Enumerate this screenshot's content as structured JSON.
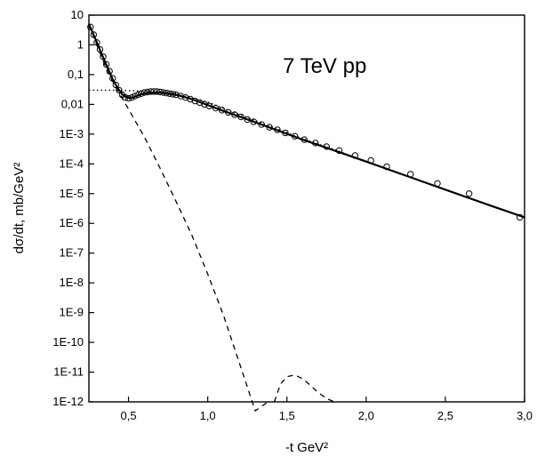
{
  "chart_data": {
    "type": "scatter",
    "title": "7 TeV  pp",
    "xlabel": "-t GeV²",
    "ylabel": "dσ/dt, mb/GeV²",
    "xlim": [
      0.25,
      3.0
    ],
    "ylim_log10": [
      -12,
      1
    ],
    "y_scale": "log",
    "grid": false,
    "x_ticks": [
      0.5,
      1.0,
      1.5,
      2.0,
      2.5,
      3.0
    ],
    "x_tick_labels": [
      "0,5",
      "1,0",
      "1,5",
      "2,0",
      "2,5",
      "3,0"
    ],
    "y_ticks_log10": [
      1,
      0,
      -1,
      -2,
      -3,
      -4,
      -5,
      -6,
      -7,
      -8,
      -9,
      -10,
      -11,
      -12
    ],
    "y_tick_labels": [
      "10",
      "1",
      "0,1",
      "0,01",
      "1E-3",
      "1E-4",
      "1E-5",
      "1E-6",
      "1E-7",
      "1E-8",
      "1E-9",
      "1E-10",
      "1E-11",
      "1E-12"
    ],
    "series": [
      {
        "style": "open-circles",
        "points": [
          [
            0.26,
            4.0
          ],
          [
            0.28,
            2.2
          ],
          [
            0.3,
            1.2
          ],
          [
            0.32,
            0.7
          ],
          [
            0.34,
            0.4
          ],
          [
            0.36,
            0.22
          ],
          [
            0.38,
            0.13
          ],
          [
            0.4,
            0.075
          ],
          [
            0.42,
            0.045
          ],
          [
            0.44,
            0.03
          ],
          [
            0.46,
            0.021
          ],
          [
            0.48,
            0.017
          ],
          [
            0.5,
            0.016
          ],
          [
            0.52,
            0.017
          ],
          [
            0.54,
            0.019
          ],
          [
            0.56,
            0.021
          ],
          [
            0.58,
            0.023
          ],
          [
            0.6,
            0.025
          ],
          [
            0.62,
            0.026
          ],
          [
            0.64,
            0.027
          ],
          [
            0.66,
            0.027
          ],
          [
            0.68,
            0.027
          ],
          [
            0.7,
            0.026
          ],
          [
            0.72,
            0.025
          ],
          [
            0.74,
            0.024
          ],
          [
            0.76,
            0.023
          ],
          [
            0.78,
            0.022
          ],
          [
            0.8,
            0.021
          ],
          [
            0.83,
            0.019
          ],
          [
            0.86,
            0.017
          ],
          [
            0.89,
            0.015
          ],
          [
            0.92,
            0.013
          ],
          [
            0.95,
            0.0115
          ],
          [
            0.98,
            0.01
          ],
          [
            1.01,
            0.0088
          ],
          [
            1.05,
            0.0075
          ],
          [
            1.09,
            0.0064
          ],
          [
            1.13,
            0.0054
          ],
          [
            1.17,
            0.0045
          ],
          [
            1.21,
            0.0038
          ],
          [
            1.25,
            0.0031
          ],
          [
            1.29,
            0.0026
          ],
          [
            1.34,
            0.0021
          ],
          [
            1.39,
            0.0017
          ],
          [
            1.44,
            0.0014
          ],
          [
            1.49,
            0.0011
          ],
          [
            1.55,
            0.00085
          ],
          [
            1.61,
            0.00065
          ],
          [
            1.68,
            0.0005
          ],
          [
            1.75,
            0.00038
          ],
          [
            1.83,
            0.00028
          ],
          [
            1.93,
            0.00019
          ],
          [
            2.03,
            0.00013
          ],
          [
            2.13,
            8e-05
          ],
          [
            2.28,
            4.5e-05
          ],
          [
            2.45,
            2.2e-05
          ],
          [
            2.65,
            1e-05
          ],
          [
            2.97,
            1.6e-06
          ]
        ]
      },
      {
        "style": "solid",
        "points": [
          [
            0.25,
            5.0
          ],
          [
            0.28,
            2.2
          ],
          [
            0.31,
            0.9
          ],
          [
            0.34,
            0.38
          ],
          [
            0.37,
            0.16
          ],
          [
            0.4,
            0.07
          ],
          [
            0.43,
            0.036
          ],
          [
            0.46,
            0.022
          ],
          [
            0.49,
            0.017
          ],
          [
            0.52,
            0.0165
          ],
          [
            0.55,
            0.019
          ],
          [
            0.58,
            0.022
          ],
          [
            0.62,
            0.024
          ],
          [
            0.66,
            0.025
          ],
          [
            0.7,
            0.025
          ],
          [
            0.75,
            0.023
          ],
          [
            0.8,
            0.021
          ],
          [
            0.9,
            0.015
          ],
          [
            1.0,
            0.0095
          ],
          [
            1.1,
            0.006
          ],
          [
            1.2,
            0.0039
          ],
          [
            1.4,
            0.0016
          ],
          [
            1.6,
            0.00065
          ],
          [
            1.8,
            0.00028
          ],
          [
            2.0,
            0.00012
          ],
          [
            2.2,
            5e-05
          ],
          [
            2.4,
            2.1e-05
          ],
          [
            2.6,
            8.8e-06
          ],
          [
            2.8,
            3.7e-06
          ],
          [
            3.0,
            1.6e-06
          ]
        ]
      },
      {
        "style": "dashed",
        "segments": [
          [
            [
              0.25,
              5.0
            ],
            [
              0.3,
              1.0
            ],
            [
              0.35,
              0.22
            ],
            [
              0.4,
              0.06
            ],
            [
              0.45,
              0.02
            ],
            [
              0.5,
              0.007
            ],
            [
              0.6,
              0.0008
            ],
            [
              0.7,
              7e-05
            ],
            [
              0.8,
              5.5e-06
            ],
            [
              0.9,
              4e-07
            ],
            [
              1.0,
              2e-08
            ],
            [
              1.1,
              8e-10
            ],
            [
              1.2,
              2e-11
            ],
            [
              1.3,
              5e-13
            ],
            [
              1.38,
              1e-12
            ]
          ],
          [
            [
              1.42,
              1e-12
            ],
            [
              1.46,
              4e-12
            ],
            [
              1.5,
              7e-12
            ],
            [
              1.55,
              8e-12
            ],
            [
              1.6,
              6e-12
            ],
            [
              1.65,
              3.5e-12
            ],
            [
              1.7,
              2e-12
            ],
            [
              1.75,
              1.3e-12
            ],
            [
              1.8,
              1e-12
            ]
          ]
        ]
      },
      {
        "style": "dotted",
        "points": [
          [
            0.25,
            0.03
          ],
          [
            0.4,
            0.03
          ],
          [
            0.5,
            0.029
          ],
          [
            0.6,
            0.028
          ],
          [
            0.7,
            0.026
          ],
          [
            0.8,
            0.022
          ],
          [
            1.0,
            0.012
          ],
          [
            1.2,
            0.0045
          ],
          [
            1.4,
            0.0018
          ],
          [
            1.6,
            0.0007
          ],
          [
            1.8,
            0.0003
          ],
          [
            2.0,
            0.00012
          ],
          [
            2.2,
            5e-05
          ],
          [
            2.4,
            2.1e-05
          ],
          [
            2.6,
            8.8e-06
          ],
          [
            2.8,
            3.7e-06
          ],
          [
            3.0,
            1.6e-06
          ]
        ]
      }
    ]
  }
}
